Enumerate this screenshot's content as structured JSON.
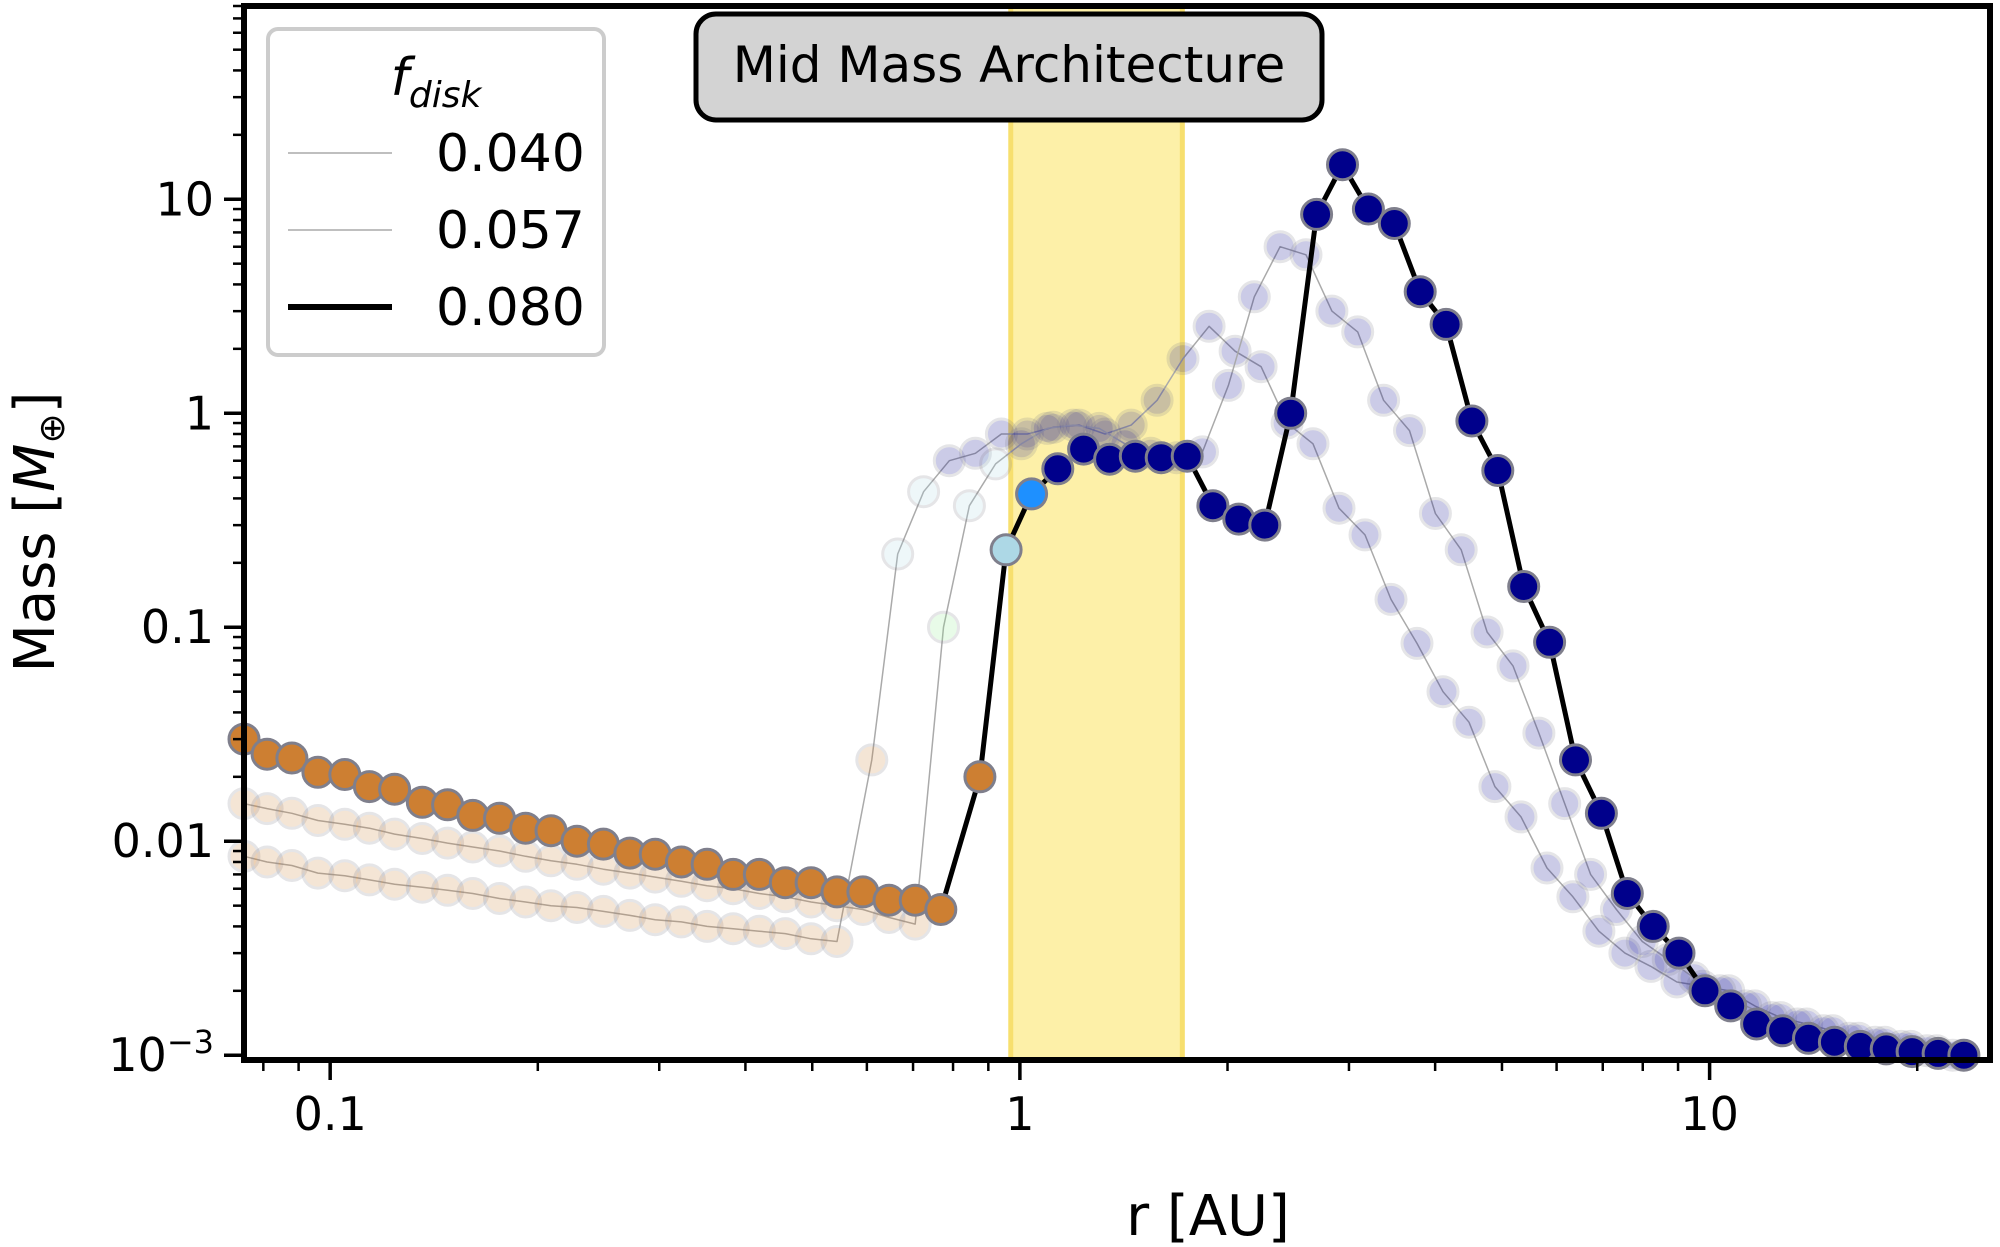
{
  "chart_data": {
    "type": "scatter",
    "title": "Mid Mass Architecture",
    "xlabel": "r [AU]",
    "ylabel_parts": {
      "main": "Mass [",
      "symbol": "M",
      "sub": "⊕",
      "close": "]"
    },
    "xscale": "log",
    "yscale": "log",
    "xlim": [
      0.075,
      25.5
    ],
    "ylim": [
      0.00095,
      80
    ],
    "x_ticks": [
      {
        "value": 0.1,
        "label": "0.1"
      },
      {
        "value": 1,
        "label": "1"
      },
      {
        "value": 10,
        "label": "10"
      }
    ],
    "y_ticks": [
      {
        "value": 0.001,
        "base": "10",
        "exp": "−3"
      },
      {
        "value": 0.01,
        "label": "0.01"
      },
      {
        "value": 0.1,
        "label": "0.1"
      },
      {
        "value": 1,
        "label": "1"
      },
      {
        "value": 10,
        "label": "10"
      }
    ],
    "shaded_band": {
      "x_range": [
        0.97,
        1.72
      ],
      "color": "#fdf0a8",
      "edge_color": "#f7df6e"
    },
    "grid": false,
    "legend": {
      "title": "f",
      "title_sub": "disk",
      "placement": "top-left",
      "entries": [
        {
          "label": "0.040",
          "style": "thin"
        },
        {
          "label": "0.057",
          "style": "thin"
        },
        {
          "label": "0.080",
          "style": "thick"
        }
      ]
    },
    "colors": {
      "rocky": "#cd7f32",
      "icy": "#00008b",
      "transition_light": "#add8e6",
      "transition_bright": "#1e90ff",
      "transition_green": "#90ee90",
      "marker_edge": "#7f7f8c",
      "thick_line": "#000000",
      "thin_line": "#aaaaaa"
    },
    "series": [
      {
        "name": "f_disk 0.040",
        "faded": true,
        "points": [
          [
            0.075,
            0.0085,
            "rocky"
          ],
          [
            0.081,
            0.008,
            "rocky"
          ],
          [
            0.088,
            0.0077,
            "rocky"
          ],
          [
            0.096,
            0.0071,
            "rocky"
          ],
          [
            0.105,
            0.0069,
            "rocky"
          ],
          [
            0.114,
            0.0066,
            "rocky"
          ],
          [
            0.124,
            0.0063,
            "rocky"
          ],
          [
            0.136,
            0.0061,
            "rocky"
          ],
          [
            0.148,
            0.0059,
            "rocky"
          ],
          [
            0.161,
            0.0057,
            "rocky"
          ],
          [
            0.176,
            0.0054,
            "rocky"
          ],
          [
            0.192,
            0.0052,
            "rocky"
          ],
          [
            0.209,
            0.005,
            "rocky"
          ],
          [
            0.228,
            0.0049,
            "rocky"
          ],
          [
            0.249,
            0.0047,
            "rocky"
          ],
          [
            0.272,
            0.0045,
            "rocky"
          ],
          [
            0.296,
            0.0043,
            "rocky"
          ],
          [
            0.323,
            0.0042,
            "rocky"
          ],
          [
            0.352,
            0.004,
            "rocky"
          ],
          [
            0.384,
            0.0039,
            "rocky"
          ],
          [
            0.419,
            0.0038,
            "rocky"
          ],
          [
            0.457,
            0.0037,
            "rocky"
          ],
          [
            0.498,
            0.0035,
            "rocky"
          ],
          [
            0.543,
            0.0034,
            "rocky"
          ],
          [
            0.61,
            0.024,
            "rocky"
          ],
          [
            0.665,
            0.22,
            "transition_light"
          ],
          [
            0.725,
            0.43,
            "transition_light"
          ],
          [
            0.79,
            0.6,
            "icy"
          ],
          [
            0.862,
            0.65,
            "icy"
          ],
          [
            0.94,
            0.8,
            "icy"
          ],
          [
            1.025,
            0.8,
            "icy"
          ],
          [
            1.118,
            0.86,
            "icy"
          ],
          [
            1.219,
            0.88,
            "icy"
          ],
          [
            1.329,
            0.8,
            "icy"
          ],
          [
            1.45,
            0.88,
            "icy"
          ],
          [
            1.581,
            1.15,
            "icy"
          ],
          [
            1.724,
            1.8,
            "icy"
          ],
          [
            1.881,
            2.55,
            "icy"
          ],
          [
            2.051,
            1.95,
            "icy"
          ],
          [
            2.237,
            1.65,
            "icy"
          ],
          [
            2.44,
            0.9,
            "icy"
          ],
          [
            2.661,
            0.72,
            "icy"
          ],
          [
            2.902,
            0.36,
            "icy"
          ],
          [
            3.165,
            0.27,
            "icy"
          ],
          [
            3.452,
            0.135,
            "icy"
          ],
          [
            3.765,
            0.084,
            "icy"
          ],
          [
            4.106,
            0.05,
            "icy"
          ],
          [
            4.478,
            0.036,
            "icy"
          ],
          [
            4.884,
            0.018,
            "icy"
          ],
          [
            5.327,
            0.013,
            "icy"
          ],
          [
            5.81,
            0.0075,
            "icy"
          ],
          [
            6.336,
            0.0055,
            "icy"
          ],
          [
            6.91,
            0.0038,
            "icy"
          ],
          [
            7.537,
            0.003,
            "icy"
          ],
          [
            8.22,
            0.0026,
            "icy"
          ],
          [
            8.965,
            0.0022,
            "icy"
          ],
          [
            9.777,
            0.0021,
            "icy"
          ],
          [
            10.66,
            0.002,
            "icy"
          ],
          [
            11.63,
            0.0017,
            "icy"
          ],
          [
            12.68,
            0.0015,
            "icy"
          ],
          [
            13.83,
            0.0014,
            "icy"
          ],
          [
            15.09,
            0.0013,
            "icy"
          ],
          [
            16.45,
            0.0012,
            "icy"
          ],
          [
            17.95,
            0.00115,
            "icy"
          ],
          [
            19.57,
            0.0011,
            "icy"
          ],
          [
            21.35,
            0.00105,
            "icy"
          ],
          [
            23.28,
            0.001,
            "icy"
          ]
        ]
      },
      {
        "name": "f_disk 0.057",
        "faded": true,
        "points": [
          [
            0.075,
            0.015,
            "rocky"
          ],
          [
            0.081,
            0.0142,
            "rocky"
          ],
          [
            0.088,
            0.0135,
            "rocky"
          ],
          [
            0.096,
            0.0125,
            "rocky"
          ],
          [
            0.105,
            0.012,
            "rocky"
          ],
          [
            0.114,
            0.0115,
            "rocky"
          ],
          [
            0.124,
            0.0108,
            "rocky"
          ],
          [
            0.136,
            0.0103,
            "rocky"
          ],
          [
            0.148,
            0.0098,
            "rocky"
          ],
          [
            0.161,
            0.0094,
            "rocky"
          ],
          [
            0.176,
            0.009,
            "rocky"
          ],
          [
            0.192,
            0.0085,
            "rocky"
          ],
          [
            0.209,
            0.0081,
            "rocky"
          ],
          [
            0.228,
            0.0078,
            "rocky"
          ],
          [
            0.249,
            0.0074,
            "rocky"
          ],
          [
            0.272,
            0.0071,
            "rocky"
          ],
          [
            0.296,
            0.0068,
            "rocky"
          ],
          [
            0.323,
            0.0065,
            "rocky"
          ],
          [
            0.352,
            0.0062,
            "rocky"
          ],
          [
            0.384,
            0.006,
            "rocky"
          ],
          [
            0.419,
            0.0057,
            "rocky"
          ],
          [
            0.457,
            0.0055,
            "rocky"
          ],
          [
            0.498,
            0.0052,
            "rocky"
          ],
          [
            0.543,
            0.005,
            "rocky"
          ],
          [
            0.592,
            0.0048,
            "rocky"
          ],
          [
            0.646,
            0.0044,
            "rocky"
          ],
          [
            0.705,
            0.0041,
            "rocky"
          ],
          [
            0.775,
            0.1,
            "transition_green"
          ],
          [
            0.845,
            0.37,
            "transition_light"
          ],
          [
            0.922,
            0.58,
            "transition_light"
          ],
          [
            1.005,
            0.72,
            "icy"
          ],
          [
            1.096,
            0.85,
            "icy"
          ],
          [
            1.195,
            0.88,
            "icy"
          ],
          [
            1.303,
            0.85,
            "icy"
          ],
          [
            1.42,
            0.72,
            "icy"
          ],
          [
            1.548,
            0.65,
            "icy"
          ],
          [
            1.688,
            0.62,
            "icy"
          ],
          [
            1.84,
            0.66,
            "icy"
          ],
          [
            2.006,
            1.35,
            "icy"
          ],
          [
            2.187,
            3.5,
            "icy"
          ],
          [
            2.384,
            6.0,
            "icy"
          ],
          [
            2.599,
            5.5,
            "icy"
          ],
          [
            2.834,
            3.0,
            "icy"
          ],
          [
            3.089,
            2.4,
            "icy"
          ],
          [
            3.368,
            1.15,
            "icy"
          ],
          [
            3.672,
            0.83,
            "icy"
          ],
          [
            4.003,
            0.34,
            "icy"
          ],
          [
            4.364,
            0.23,
            "icy"
          ],
          [
            4.758,
            0.095,
            "icy"
          ],
          [
            5.187,
            0.066,
            "icy"
          ],
          [
            5.655,
            0.032,
            "icy"
          ],
          [
            6.165,
            0.015,
            "icy"
          ],
          [
            6.721,
            0.007,
            "icy"
          ],
          [
            7.327,
            0.0048,
            "icy"
          ],
          [
            7.988,
            0.0034,
            "icy"
          ],
          [
            8.709,
            0.0028,
            "icy"
          ],
          [
            9.494,
            0.0023,
            "icy"
          ],
          [
            10.35,
            0.002,
            "icy"
          ],
          [
            11.28,
            0.0017,
            "icy"
          ],
          [
            12.3,
            0.0015,
            "icy"
          ],
          [
            13.41,
            0.0014,
            "icy"
          ],
          [
            14.62,
            0.0013,
            "icy"
          ],
          [
            15.94,
            0.0012,
            "icy"
          ],
          [
            17.38,
            0.00115,
            "icy"
          ],
          [
            18.95,
            0.0011,
            "icy"
          ],
          [
            20.66,
            0.00105,
            "icy"
          ],
          [
            22.52,
            0.001,
            "icy"
          ]
        ]
      },
      {
        "name": "f_disk 0.080",
        "faded": false,
        "points": [
          [
            0.075,
            0.03,
            "rocky"
          ],
          [
            0.081,
            0.0255,
            "rocky"
          ],
          [
            0.088,
            0.0245,
            "rocky"
          ],
          [
            0.096,
            0.021,
            "rocky"
          ],
          [
            0.105,
            0.0205,
            "rocky"
          ],
          [
            0.114,
            0.018,
            "rocky"
          ],
          [
            0.124,
            0.0175,
            "rocky"
          ],
          [
            0.136,
            0.0152,
            "rocky"
          ],
          [
            0.148,
            0.0148,
            "rocky"
          ],
          [
            0.161,
            0.0132,
            "rocky"
          ],
          [
            0.176,
            0.0128,
            "rocky"
          ],
          [
            0.192,
            0.0115,
            "rocky"
          ],
          [
            0.209,
            0.0112,
            "rocky"
          ],
          [
            0.228,
            0.01,
            "rocky"
          ],
          [
            0.249,
            0.0097,
            "rocky"
          ],
          [
            0.272,
            0.0088,
            "rocky"
          ],
          [
            0.296,
            0.0087,
            "rocky"
          ],
          [
            0.323,
            0.008,
            "rocky"
          ],
          [
            0.352,
            0.0078,
            "rocky"
          ],
          [
            0.384,
            0.007,
            "rocky"
          ],
          [
            0.419,
            0.007,
            "rocky"
          ],
          [
            0.457,
            0.0064,
            "rocky"
          ],
          [
            0.498,
            0.0064,
            "rocky"
          ],
          [
            0.543,
            0.0058,
            "rocky"
          ],
          [
            0.592,
            0.0058,
            "rocky"
          ],
          [
            0.646,
            0.0053,
            "rocky"
          ],
          [
            0.705,
            0.0053,
            "rocky"
          ],
          [
            0.768,
            0.0048,
            "rocky"
          ],
          [
            0.875,
            0.02,
            "rocky"
          ],
          [
            0.955,
            0.23,
            "transition_light"
          ],
          [
            1.04,
            0.42,
            "transition_bright"
          ],
          [
            1.135,
            0.55,
            "icy"
          ],
          [
            1.237,
            0.68,
            "icy"
          ],
          [
            1.349,
            0.61,
            "icy"
          ],
          [
            1.47,
            0.63,
            "icy"
          ],
          [
            1.603,
            0.62,
            "icy"
          ],
          [
            1.748,
            0.63,
            "icy"
          ],
          [
            1.905,
            0.37,
            "icy"
          ],
          [
            2.077,
            0.32,
            "icy"
          ],
          [
            2.265,
            0.3,
            "icy"
          ],
          [
            2.47,
            1.0,
            "icy"
          ],
          [
            2.693,
            8.5,
            "icy"
          ],
          [
            2.936,
            14.5,
            "icy"
          ],
          [
            3.201,
            9.0,
            "icy"
          ],
          [
            3.49,
            7.7,
            "icy"
          ],
          [
            3.805,
            3.7,
            "icy"
          ],
          [
            4.149,
            2.6,
            "icy"
          ],
          [
            4.523,
            0.92,
            "icy"
          ],
          [
            4.931,
            0.54,
            "icy"
          ],
          [
            5.376,
            0.155,
            "icy"
          ],
          [
            5.862,
            0.085,
            "icy"
          ],
          [
            6.391,
            0.024,
            "icy"
          ],
          [
            6.968,
            0.0135,
            "icy"
          ],
          [
            7.597,
            0.0057,
            "icy"
          ],
          [
            8.283,
            0.004,
            "icy"
          ],
          [
            9.03,
            0.003,
            "icy"
          ],
          [
            9.846,
            0.002,
            "icy"
          ],
          [
            10.73,
            0.0017,
            "icy"
          ],
          [
            11.7,
            0.0014,
            "icy"
          ],
          [
            12.76,
            0.0013,
            "icy"
          ],
          [
            13.91,
            0.0012,
            "icy"
          ],
          [
            15.17,
            0.00115,
            "icy"
          ],
          [
            16.54,
            0.0011,
            "icy"
          ],
          [
            18.03,
            0.00107,
            "icy"
          ],
          [
            19.66,
            0.00104,
            "icy"
          ],
          [
            21.44,
            0.00102,
            "icy"
          ],
          [
            23.37,
            0.001,
            "icy"
          ]
        ]
      }
    ]
  }
}
